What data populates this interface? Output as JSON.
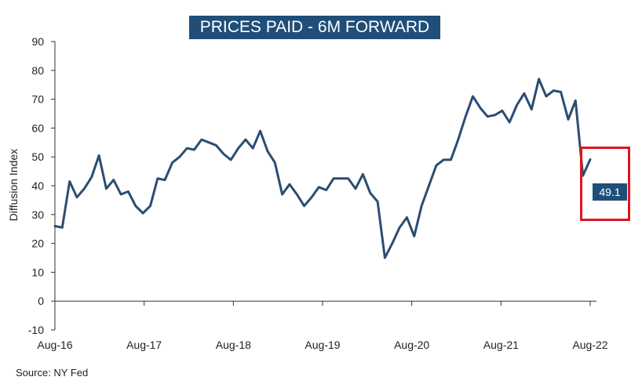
{
  "chart_data": {
    "type": "line",
    "title": "PRICES PAID - 6M FORWARD",
    "ylabel": "Diffusion Index",
    "xlabel": "",
    "source": "Source: NY Fed",
    "x_tick_labels": [
      "Aug-16",
      "Aug-17",
      "Aug-18",
      "Aug-19",
      "Aug-20",
      "Aug-21",
      "Aug-22"
    ],
    "y_ticks": [
      -10,
      0,
      10,
      20,
      30,
      40,
      50,
      60,
      70,
      80,
      90
    ],
    "ylim": [
      -10,
      90
    ],
    "grid": false,
    "line_color": "#2b4d72",
    "callout_color": "#1f4e79",
    "highlight_color": "#e0161c",
    "last_value_label": "49.1",
    "series": [
      {
        "values": [
          26,
          25.5,
          41.5,
          36,
          39,
          43,
          50.5,
          39,
          42,
          37,
          38,
          33,
          30.5,
          33,
          42.5,
          42,
          48,
          50,
          53,
          52.5,
          56,
          55,
          54,
          51,
          49,
          53,
          56,
          53,
          59,
          52,
          48,
          37,
          40.5,
          37,
          33,
          36,
          39.5,
          38.5,
          42.5,
          42.5,
          42.5,
          39,
          44,
          37.5,
          34.5,
          15,
          20,
          25.5,
          29,
          22.5,
          33,
          40,
          47,
          49,
          49,
          56,
          64,
          71,
          67,
          64,
          64.5,
          66,
          62,
          68,
          72,
          66.5,
          77,
          71,
          73,
          72.5,
          63,
          69.5,
          43.5,
          49.1
        ]
      }
    ]
  }
}
